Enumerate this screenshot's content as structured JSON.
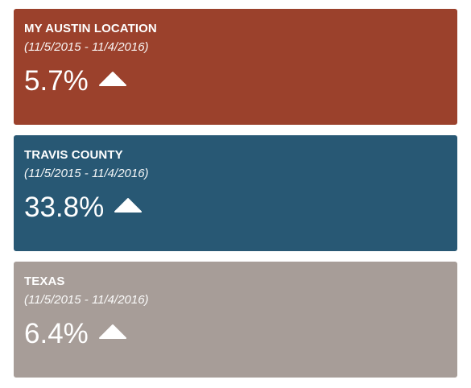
{
  "cards": [
    {
      "title": "MY AUSTIN LOCATION",
      "range": "(11/5/2015 - 11/4/2016)",
      "value": "5.7%",
      "trend_icon": "triangle-up-icon",
      "color": "#9b412c"
    },
    {
      "title": "TRAVIS COUNTY",
      "range": "(11/5/2015 - 11/4/2016)",
      "value": "33.8%",
      "trend_icon": "triangle-up-icon",
      "color": "#285874"
    },
    {
      "title": "TEXAS",
      "range": "(11/5/2015 - 11/4/2016)",
      "value": "6.4%",
      "trend_icon": "triangle-up-icon",
      "color": "#a79d98"
    }
  ]
}
